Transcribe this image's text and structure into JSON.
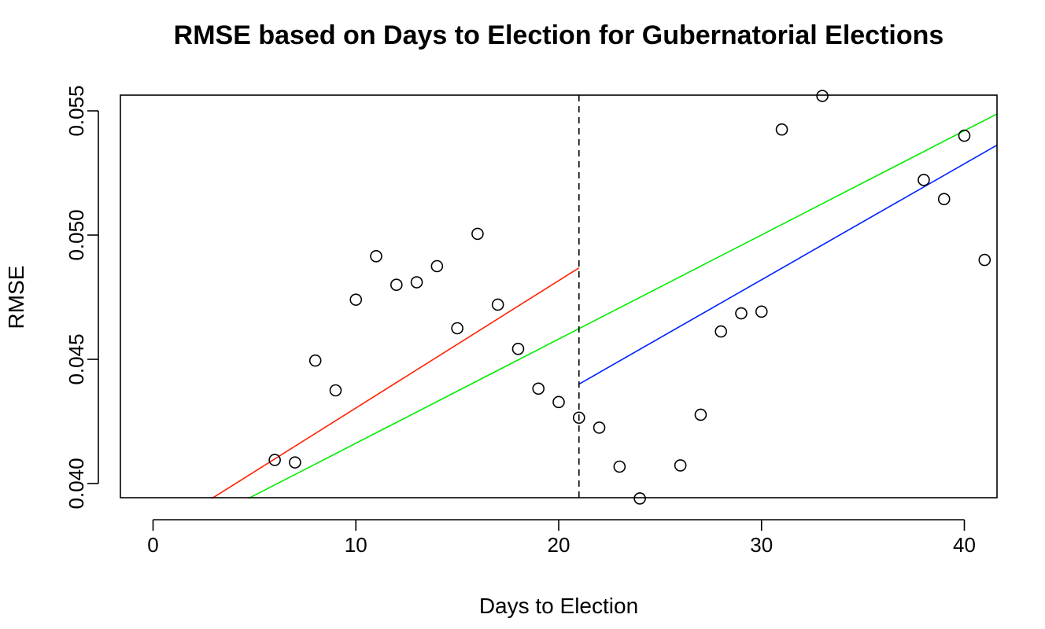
{
  "chart_data": {
    "type": "scatter",
    "title": "RMSE based on Days to Election for Gubernatorial Elections",
    "xlabel": "Days to Election",
    "ylabel": "RMSE",
    "xlim": [
      0,
      41
    ],
    "ylim": [
      0.0394,
      0.0556
    ],
    "x_ticks": [
      0,
      10,
      20,
      30,
      40
    ],
    "x_tick_labels": [
      "0",
      "10",
      "20",
      "30",
      "40"
    ],
    "y_ticks": [
      0.04,
      0.045,
      0.05,
      0.055
    ],
    "y_tick_labels": [
      "0.040",
      "0.045",
      "0.050",
      "0.055"
    ],
    "grid": false,
    "points": [
      {
        "x": 6,
        "y": 0.04095
      },
      {
        "x": 7,
        "y": 0.04085
      },
      {
        "x": 8,
        "y": 0.04495
      },
      {
        "x": 9,
        "y": 0.04375
      },
      {
        "x": 10,
        "y": 0.0474
      },
      {
        "x": 11,
        "y": 0.04915
      },
      {
        "x": 12,
        "y": 0.048
      },
      {
        "x": 13,
        "y": 0.0481
      },
      {
        "x": 14,
        "y": 0.04875
      },
      {
        "x": 15,
        "y": 0.04625
      },
      {
        "x": 16,
        "y": 0.05005
      },
      {
        "x": 17,
        "y": 0.0472
      },
      {
        "x": 18,
        "y": 0.04542
      },
      {
        "x": 19,
        "y": 0.04382
      },
      {
        "x": 20,
        "y": 0.04328
      },
      {
        "x": 21,
        "y": 0.04265
      },
      {
        "x": 22,
        "y": 0.04225
      },
      {
        "x": 23,
        "y": 0.04068
      },
      {
        "x": 24,
        "y": 0.0394
      },
      {
        "x": 26,
        "y": 0.04073
      },
      {
        "x": 27,
        "y": 0.04277
      },
      {
        "x": 28,
        "y": 0.04612
      },
      {
        "x": 29,
        "y": 0.04685
      },
      {
        "x": 30,
        "y": 0.04692
      },
      {
        "x": 31,
        "y": 0.05425
      },
      {
        "x": 33,
        "y": 0.0556
      },
      {
        "x": 38,
        "y": 0.05222
      },
      {
        "x": 39,
        "y": 0.05145
      },
      {
        "x": 40,
        "y": 0.054
      },
      {
        "x": 41,
        "y": 0.049
      }
    ],
    "lines": [
      {
        "color": "#ff2200",
        "x": [
          2.9,
          21
        ],
        "y": [
          0.0394,
          0.04868
        ]
      },
      {
        "color": "#00ee00",
        "x": [
          4.7,
          42.1
        ],
        "y": [
          0.0394,
          0.05508
        ]
      },
      {
        "color": "#0022ff",
        "x": [
          21,
          42.1
        ],
        "y": [
          0.044,
          0.05385
        ]
      }
    ],
    "vline": {
      "x": 21,
      "style": "dashed",
      "color": "#000000"
    }
  }
}
